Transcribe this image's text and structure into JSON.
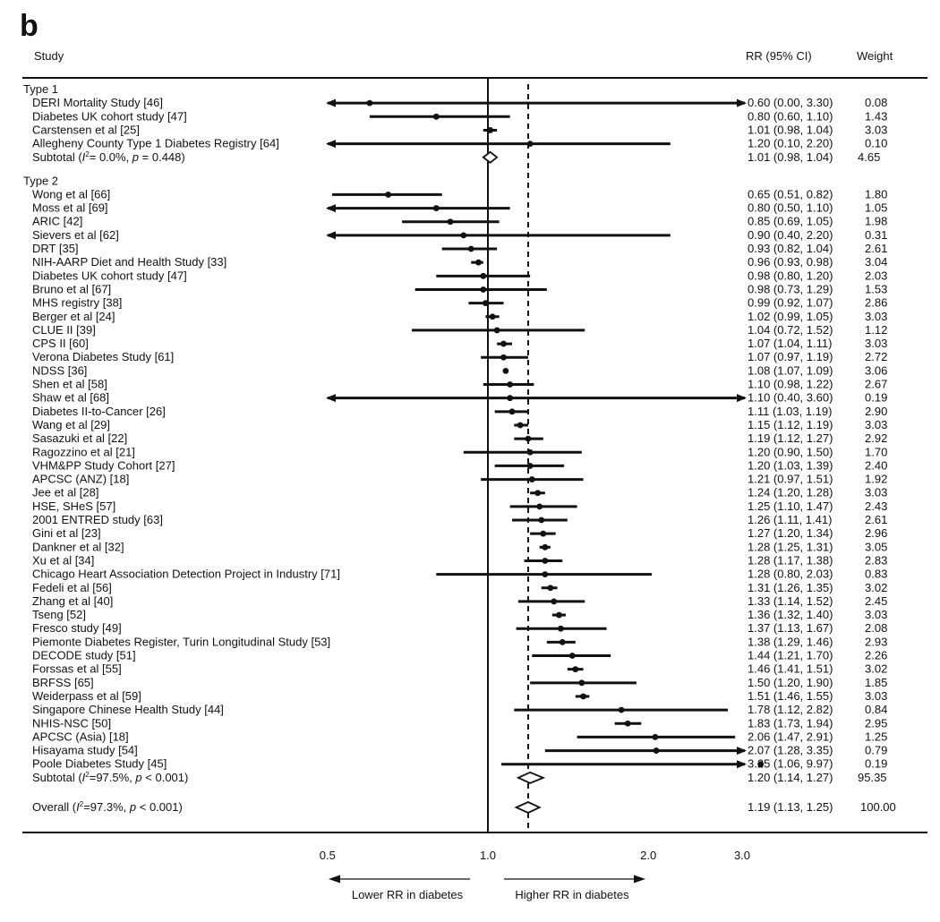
{
  "panel_label": "b",
  "chart_data": {
    "type": "forest",
    "x_scale": "log",
    "xlim": [
      0.5,
      3.0
    ],
    "ticks": [
      "0.5",
      "1.0",
      "2.0",
      "3.0"
    ],
    "null_value": 1.0,
    "overall_value": 1.19,
    "headers": {
      "study": "Study",
      "rr": "RR (95% CI)",
      "weight": "Weight"
    },
    "direction_labels": {
      "left": "Lower RR in diabetes",
      "right": "Higher RR in diabetes"
    },
    "groups": [
      {
        "name": "Type 1",
        "studies": [
          {
            "label": "DERI Mortality Study [46]",
            "rr": 0.6,
            "lo": 0.0,
            "hi": 3.3,
            "text": "0.60 (0.00, 3.30)",
            "weight": "0.08"
          },
          {
            "label": "Diabetes UK cohort study [47]",
            "rr": 0.8,
            "lo": 0.6,
            "hi": 1.1,
            "text": "0.80 (0.60, 1.10)",
            "weight": "1.43"
          },
          {
            "label": "Carstensen et al [25]",
            "rr": 1.01,
            "lo": 0.98,
            "hi": 1.04,
            "text": "1.01 (0.98, 1.04)",
            "weight": "3.03"
          },
          {
            "label": "Allegheny County Type 1 Diabetes Registry [64]",
            "rr": 1.2,
            "lo": 0.1,
            "hi": 2.2,
            "text": "1.20 (0.10, 2.20)",
            "weight": "0.10"
          }
        ],
        "subtotal": {
          "label_prefix": "Subtotal  (",
          "i2_text": "= 0.0%, ",
          "p_text": " = 0.448)",
          "rr": 1.01,
          "lo": 0.98,
          "hi": 1.04,
          "text": "1.01 (0.98, 1.04)",
          "weight": "4.65"
        }
      },
      {
        "name": "Type 2",
        "studies": [
          {
            "label": "Wong et al [66]",
            "rr": 0.65,
            "lo": 0.51,
            "hi": 0.82,
            "text": "0.65 (0.51, 0.82)",
            "weight": "1.80"
          },
          {
            "label": "Moss et al [69]",
            "rr": 0.8,
            "lo": 0.5,
            "hi": 1.1,
            "text": "0.80 (0.50, 1.10)",
            "weight": "1.05"
          },
          {
            "label": "ARIC [42]",
            "rr": 0.85,
            "lo": 0.69,
            "hi": 1.05,
            "text": "0.85 (0.69, 1.05)",
            "weight": "1.98"
          },
          {
            "label": "Sievers et al [62]",
            "rr": 0.9,
            "lo": 0.4,
            "hi": 2.2,
            "text": "0.90 (0.40, 2.20)",
            "weight": "0.31"
          },
          {
            "label": "DRT [35]",
            "rr": 0.93,
            "lo": 0.82,
            "hi": 1.04,
            "text": "0.93 (0.82, 1.04)",
            "weight": "2.61"
          },
          {
            "label": "NIH-AARP Diet and Health Study [33]",
            "rr": 0.96,
            "lo": 0.93,
            "hi": 0.98,
            "text": "0.96 (0.93, 0.98)",
            "weight": "3.04"
          },
          {
            "label": "Diabetes UK cohort study [47]",
            "rr": 0.98,
            "lo": 0.8,
            "hi": 1.2,
            "text": "0.98 (0.80, 1.20)",
            "weight": "2.03"
          },
          {
            "label": "Bruno et al [67]",
            "rr": 0.98,
            "lo": 0.73,
            "hi": 1.29,
            "text": "0.98 (0.73, 1.29)",
            "weight": "1.53"
          },
          {
            "label": "MHS registry [38]",
            "rr": 0.99,
            "lo": 0.92,
            "hi": 1.07,
            "text": "0.99 (0.92, 1.07)",
            "weight": "2.86"
          },
          {
            "label": "Berger et al [24]",
            "rr": 1.02,
            "lo": 0.99,
            "hi": 1.05,
            "text": "1.02 (0.99, 1.05)",
            "weight": "3.03"
          },
          {
            "label": "CLUE II [39]",
            "rr": 1.04,
            "lo": 0.72,
            "hi": 1.52,
            "text": "1.04 (0.72, 1.52)",
            "weight": "1.12"
          },
          {
            "label": "CPS II [60]",
            "rr": 1.07,
            "lo": 1.04,
            "hi": 1.11,
            "text": "1.07 (1.04, 1.11)",
            "weight": "3.03"
          },
          {
            "label": "Verona Diabetes Study [61]",
            "rr": 1.07,
            "lo": 0.97,
            "hi": 1.19,
            "text": "1.07 (0.97, 1.19)",
            "weight": "2.72"
          },
          {
            "label": "NDSS [36]",
            "rr": 1.08,
            "lo": 1.07,
            "hi": 1.09,
            "text": "1.08 (1.07, 1.09)",
            "weight": "3.06"
          },
          {
            "label": "Shen et al [58]",
            "rr": 1.1,
            "lo": 0.98,
            "hi": 1.22,
            "text": "1.10 (0.98, 1.22)",
            "weight": "2.67"
          },
          {
            "label": "Shaw et al [68]",
            "rr": 1.1,
            "lo": 0.4,
            "hi": 3.6,
            "text": "1.10 (0.40, 3.60)",
            "weight": "0.19"
          },
          {
            "label": "Diabetes II-to-Cancer [26]",
            "rr": 1.11,
            "lo": 1.03,
            "hi": 1.19,
            "text": "1.11 (1.03, 1.19)",
            "weight": "2.90"
          },
          {
            "label": "Wang et al [29]",
            "rr": 1.15,
            "lo": 1.12,
            "hi": 1.19,
            "text": "1.15 (1.12, 1.19)",
            "weight": "3.03"
          },
          {
            "label": "Sasazuki et al [22]",
            "rr": 1.19,
            "lo": 1.12,
            "hi": 1.27,
            "text": "1.19 (1.12, 1.27)",
            "weight": "2.92"
          },
          {
            "label": "Ragozzino et al [21]",
            "rr": 1.2,
            "lo": 0.9,
            "hi": 1.5,
            "text": "1.20 (0.90, 1.50)",
            "weight": "1.70"
          },
          {
            "label": "VHM&PP Study Cohort [27]",
            "rr": 1.2,
            "lo": 1.03,
            "hi": 1.39,
            "text": "1.20 (1.03, 1.39)",
            "weight": "2.40"
          },
          {
            "label": "APCSC (ANZ) [18]",
            "rr": 1.21,
            "lo": 0.97,
            "hi": 1.51,
            "text": "1.21 (0.97, 1.51)",
            "weight": "1.92"
          },
          {
            "label": "Jee et al [28]",
            "rr": 1.24,
            "lo": 1.2,
            "hi": 1.28,
            "text": "1.24 (1.20, 1.28)",
            "weight": "3.03"
          },
          {
            "label": "HSE, SHeS [57]",
            "rr": 1.25,
            "lo": 1.1,
            "hi": 1.47,
            "text": "1.25 (1.10, 1.47)",
            "weight": "2.43"
          },
          {
            "label": "2001 ENTRED study [63]",
            "rr": 1.26,
            "lo": 1.11,
            "hi": 1.41,
            "text": "1.26 (1.11, 1.41)",
            "weight": "2.61"
          },
          {
            "label": "Gini et al [23]",
            "rr": 1.27,
            "lo": 1.2,
            "hi": 1.34,
            "text": "1.27 (1.20, 1.34)",
            "weight": "2.96"
          },
          {
            "label": "Dankner et al [32]",
            "rr": 1.28,
            "lo": 1.25,
            "hi": 1.31,
            "text": "1.28 (1.25, 1.31)",
            "weight": "3.05"
          },
          {
            "label": "Xu et al [34]",
            "rr": 1.28,
            "lo": 1.17,
            "hi": 1.38,
            "text": "1.28 (1.17, 1.38)",
            "weight": "2.83"
          },
          {
            "label": "Chicago Heart Association Detection Project in Industry [71]",
            "rr": 1.28,
            "lo": 0.8,
            "hi": 2.03,
            "text": "1.28 (0.80, 2.03)",
            "weight": "0.83"
          },
          {
            "label": "Fedeli et al [56]",
            "rr": 1.31,
            "lo": 1.26,
            "hi": 1.35,
            "text": "1.31 (1.26, 1.35)",
            "weight": "3.02"
          },
          {
            "label": "Zhang et al [40]",
            "rr": 1.33,
            "lo": 1.14,
            "hi": 1.52,
            "text": "1.33 (1.14, 1.52)",
            "weight": "2.45"
          },
          {
            "label": "Tseng [52]",
            "rr": 1.36,
            "lo": 1.32,
            "hi": 1.4,
            "text": "1.36 (1.32, 1.40)",
            "weight": "3.03"
          },
          {
            "label": "Fresco study [49]",
            "rr": 1.37,
            "lo": 1.13,
            "hi": 1.67,
            "text": "1.37 (1.13, 1.67)",
            "weight": "2.08"
          },
          {
            "label": "Piemonte Diabetes Register, Turin Longitudinal Study [53]",
            "rr": 1.38,
            "lo": 1.29,
            "hi": 1.46,
            "text": "1.38 (1.29, 1.46)",
            "weight": "2.93"
          },
          {
            "label": "DECODE study [51]",
            "rr": 1.44,
            "lo": 1.21,
            "hi": 1.7,
            "text": "1.44 (1.21, 1.70)",
            "weight": "2.26"
          },
          {
            "label": "Forssas et al [55]",
            "rr": 1.46,
            "lo": 1.41,
            "hi": 1.51,
            "text": "1.46 (1.41, 1.51)",
            "weight": "3.02"
          },
          {
            "label": "BRFSS [65]",
            "rr": 1.5,
            "lo": 1.2,
            "hi": 1.9,
            "text": "1.50 (1.20, 1.90)",
            "weight": "1.85"
          },
          {
            "label": "Weiderpass et al [59]",
            "rr": 1.51,
            "lo": 1.46,
            "hi": 1.55,
            "text": "1.51 (1.46, 1.55)",
            "weight": "3.03"
          },
          {
            "label": "Singapore Chinese Health Study [44]",
            "rr": 1.78,
            "lo": 1.12,
            "hi": 2.82,
            "text": "1.78 (1.12, 2.82)",
            "weight": "0.84"
          },
          {
            "label": "NHIS-NSC [50]",
            "rr": 1.83,
            "lo": 1.73,
            "hi": 1.94,
            "text": "1.83 (1.73, 1.94)",
            "weight": "2.95"
          },
          {
            "label": "APCSC (Asia) [18]",
            "rr": 2.06,
            "lo": 1.47,
            "hi": 2.91,
            "text": "2.06 (1.47, 2.91)",
            "weight": "1.25"
          },
          {
            "label": "Hisayama study [54]",
            "rr": 2.07,
            "lo": 1.28,
            "hi": 3.35,
            "text": "2.07 (1.28, 3.35)",
            "weight": "0.79"
          },
          {
            "label": "Poole Diabetes Study [45]",
            "rr": 3.25,
            "lo": 1.06,
            "hi": 9.97,
            "text": "3.25 (1.06, 9.97)",
            "weight": "0.19"
          }
        ],
        "subtotal": {
          "label_prefix": "Subtotal  (",
          "i2_text": "=97.5%, ",
          "p_text": " < 0.001)",
          "rr": 1.2,
          "lo": 1.14,
          "hi": 1.27,
          "text": "1.20 (1.14, 1.27)",
          "weight": "95.35"
        }
      }
    ],
    "overall": {
      "label_prefix": "Overall  (",
      "i2_text": "=97.3%, ",
      "p_text": " < 0.001)",
      "rr": 1.19,
      "lo": 1.13,
      "hi": 1.25,
      "text": "1.19 (1.13, 1.25)",
      "weight": "100.00"
    }
  }
}
